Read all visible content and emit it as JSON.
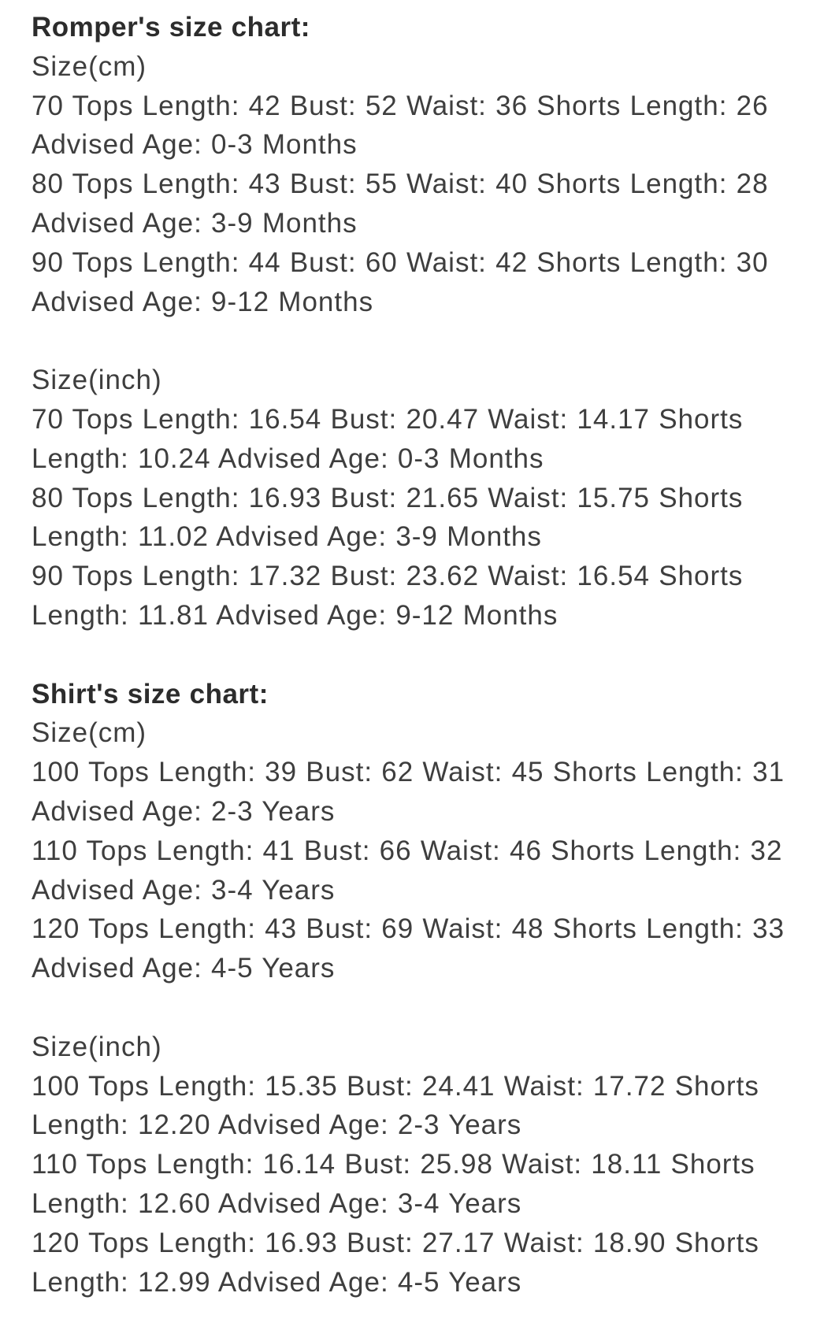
{
  "page": {
    "background_color": "#ffffff",
    "text_color": "#3e3e3e",
    "heading_color": "#2c2c2c"
  },
  "sections": [
    {
      "heading": "Romper's size chart:",
      "blocks": [
        {
          "unit_label": "Size(cm)",
          "entries": [
            "70 Tops Length: 42 Bust: 52 Waist: 36 Shorts Length: 26 Advised Age: 0-3 Months",
            "80 Tops Length: 43 Bust: 55 Waist: 40 Shorts Length: 28 Advised Age: 3-9 Months",
            "90 Tops Length: 44 Bust: 60 Waist: 42 Shorts Length: 30 Advised Age: 9-12 Months"
          ]
        },
        {
          "unit_label": "Size(inch)",
          "entries": [
            "70 Tops Length: 16.54 Bust: 20.47 Waist: 14.17 Shorts Length: 10.24 Advised Age: 0-3 Months",
            "80 Tops Length: 16.93 Bust: 21.65 Waist: 15.75 Shorts Length: 11.02 Advised Age: 3-9 Months",
            "90 Tops Length: 17.32 Bust: 23.62 Waist: 16.54 Shorts Length: 11.81 Advised Age: 9-12 Months"
          ]
        }
      ]
    },
    {
      "heading": "Shirt's size chart:",
      "blocks": [
        {
          "unit_label": "Size(cm)",
          "entries": [
            "100 Tops Length: 39 Bust: 62 Waist: 45 Shorts Length: 31 Advised Age: 2-3 Years",
            "110 Tops Length: 41 Bust: 66 Waist: 46 Shorts Length: 32 Advised Age: 3-4 Years",
            "120 Tops Length: 43 Bust: 69 Waist: 48 Shorts Length: 33 Advised Age: 4-5 Years"
          ]
        },
        {
          "unit_label": "Size(inch)",
          "entries": [
            "100 Tops Length: 15.35 Bust: 24.41 Waist: 17.72 Shorts Length: 12.20 Advised Age: 2-3 Years",
            "110 Tops Length: 16.14 Bust: 25.98 Waist: 18.11 Shorts Length: 12.60 Advised Age: 3-4 Years",
            "120 Tops Length: 16.93 Bust: 27.17 Waist: 18.90 Shorts Length: 12.99 Advised Age: 4-5 Years"
          ]
        }
      ]
    }
  ]
}
